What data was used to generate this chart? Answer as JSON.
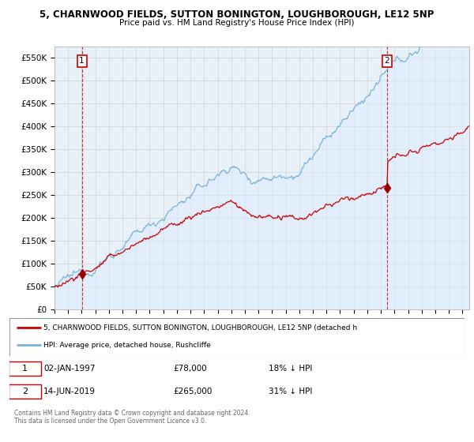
{
  "title": "5, CHARNWOOD FIELDS, SUTTON BONINGTON, LOUGHBOROUGH, LE12 5NP",
  "subtitle": "Price paid vs. HM Land Registry's House Price Index (HPI)",
  "ylim": [
    0,
    575000
  ],
  "yticks": [
    0,
    50000,
    100000,
    150000,
    200000,
    250000,
    300000,
    350000,
    400000,
    450000,
    500000,
    550000
  ],
  "ytick_labels": [
    "£0",
    "£50K",
    "£100K",
    "£150K",
    "£200K",
    "£250K",
    "£300K",
    "£350K",
    "£400K",
    "£450K",
    "£500K",
    "£550K"
  ],
  "xlim_start": 1995.0,
  "xlim_end": 2025.5,
  "sale1_x": 1997.01,
  "sale1_y": 78000,
  "sale2_x": 2019.45,
  "sale2_y": 265000,
  "red_color": "#cc0000",
  "blue_color": "#7bb3d9",
  "blue_fill": "#ddeeff",
  "marker_color": "#990000",
  "dashed_color": "#cc0000",
  "legend_line1": "5, CHARNWOOD FIELDS, SUTTON BONINGTON, LOUGHBOROUGH, LE12 5NP (detached h",
  "legend_line2": "HPI: Average price, detached house, Rushcliffe",
  "footer": "Contains HM Land Registry data © Crown copyright and database right 2024.\nThis data is licensed under the Open Government Licence v3.0.",
  "background_color": "#ffffff",
  "grid_color": "#cccccc",
  "chart_bg": "#e8f0f8"
}
